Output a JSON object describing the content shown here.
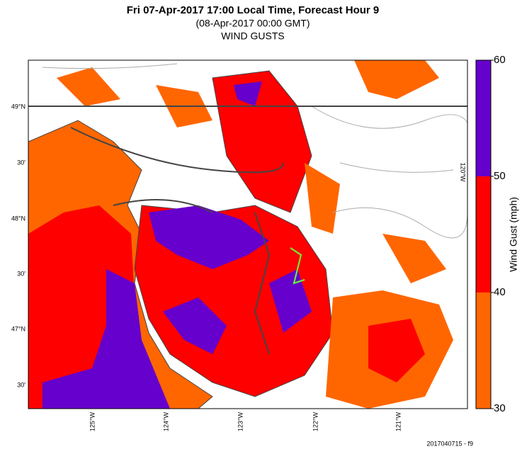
{
  "header": {
    "title": "Fri 07-Apr-2017 17:00 Local Time, Forecast Hour 9",
    "subtitle": "(08-Apr-2017 00:00 GMT)",
    "product": "WIND GUSTS"
  },
  "map": {
    "lat_labels": [
      "49°N",
      "30'",
      "48°N",
      "30'",
      "47°N",
      "30'"
    ],
    "lon_labels": [
      "125°W",
      "124°W",
      "123°W",
      "122°W",
      "121°W"
    ],
    "right_label": "120°W"
  },
  "colorbar": {
    "label": "Wind Gust (mph)",
    "ticks": [
      30,
      40,
      50,
      60
    ],
    "colors": [
      "#ff6600",
      "#ff0000",
      "#6600cc"
    ]
  },
  "footer": "2017040715 - f9"
}
